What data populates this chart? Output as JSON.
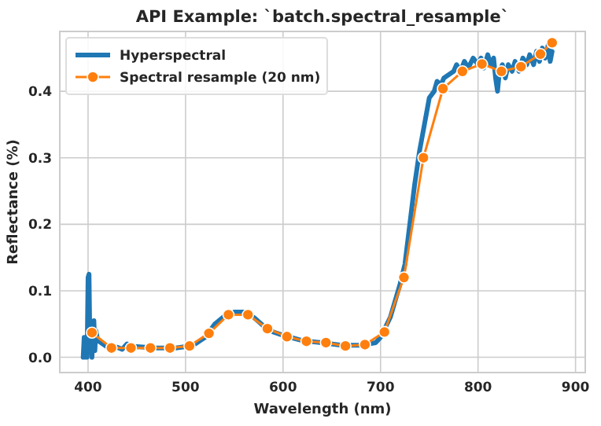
{
  "chart_data": {
    "type": "line",
    "title": "API Example: `batch.spectral_resample`",
    "xlabel": "Wavelength (nm)",
    "ylabel": "Reflectance (%)",
    "xlim": [
      371,
      910
    ],
    "xticks": [
      400,
      500,
      600,
      700,
      800,
      900
    ],
    "ylim": [
      -0.023,
      0.49
    ],
    "yticks": [
      {
        "value": 0,
        "label": "0.0"
      },
      0.1,
      0.2,
      0.3,
      0.4
    ],
    "grid": true,
    "legend": "top left",
    "series": [
      {
        "name": "Hyperspectral",
        "color": "#1f77b4",
        "marker": "none",
        "x": [
          395,
          396,
          397,
          398,
          399,
          400,
          401,
          402,
          403,
          404,
          406,
          407,
          408,
          410,
          415,
          420,
          430,
          435,
          440,
          445,
          450,
          470,
          490,
          500,
          510,
          520,
          530,
          540,
          550,
          560,
          570,
          580,
          590,
          600,
          610,
          620,
          640,
          660,
          680,
          695,
          700,
          710,
          720,
          725,
          730,
          735,
          740,
          745,
          750,
          755,
          758,
          762,
          765,
          770,
          775,
          778,
          782,
          786,
          790,
          795,
          800,
          803,
          806,
          810,
          813,
          816,
          818,
          820,
          822,
          825,
          828,
          831,
          835,
          838,
          842,
          846,
          850,
          853,
          857,
          860,
          863,
          866,
          869,
          872,
          874,
          876
        ],
        "values": [
          0.0,
          0.03,
          0.0,
          0.03,
          0.0,
          0.12,
          0.125,
          0.01,
          0.05,
          0.0,
          0.055,
          0.01,
          0.04,
          0.025,
          0.02,
          0.015,
          0.015,
          0.012,
          0.02,
          0.014,
          0.016,
          0.014,
          0.014,
          0.016,
          0.02,
          0.03,
          0.05,
          0.062,
          0.068,
          0.068,
          0.06,
          0.047,
          0.038,
          0.033,
          0.029,
          0.025,
          0.022,
          0.018,
          0.018,
          0.022,
          0.03,
          0.06,
          0.11,
          0.14,
          0.2,
          0.26,
          0.31,
          0.35,
          0.39,
          0.4,
          0.415,
          0.41,
          0.42,
          0.425,
          0.43,
          0.44,
          0.43,
          0.445,
          0.435,
          0.45,
          0.44,
          0.45,
          0.435,
          0.455,
          0.44,
          0.45,
          0.42,
          0.4,
          0.43,
          0.44,
          0.42,
          0.44,
          0.43,
          0.445,
          0.43,
          0.45,
          0.44,
          0.455,
          0.44,
          0.46,
          0.445,
          0.465,
          0.45,
          0.47,
          0.445,
          0.46
        ]
      },
      {
        "name": "Spectral resample (20 nm)",
        "color": "#ff7f0e",
        "marker": "circle",
        "x": [
          404,
          424,
          444,
          464,
          484,
          504,
          524,
          544,
          564,
          584,
          604,
          624,
          644,
          664,
          684,
          704,
          724,
          744,
          764,
          784,
          804,
          824,
          844,
          864,
          876
        ],
        "values": [
          0.037,
          0.014,
          0.014,
          0.014,
          0.014,
          0.017,
          0.036,
          0.064,
          0.064,
          0.043,
          0.031,
          0.024,
          0.022,
          0.017,
          0.019,
          0.038,
          0.12,
          0.3,
          0.404,
          0.43,
          0.441,
          0.43,
          0.437,
          0.456,
          0.473
        ]
      }
    ]
  }
}
